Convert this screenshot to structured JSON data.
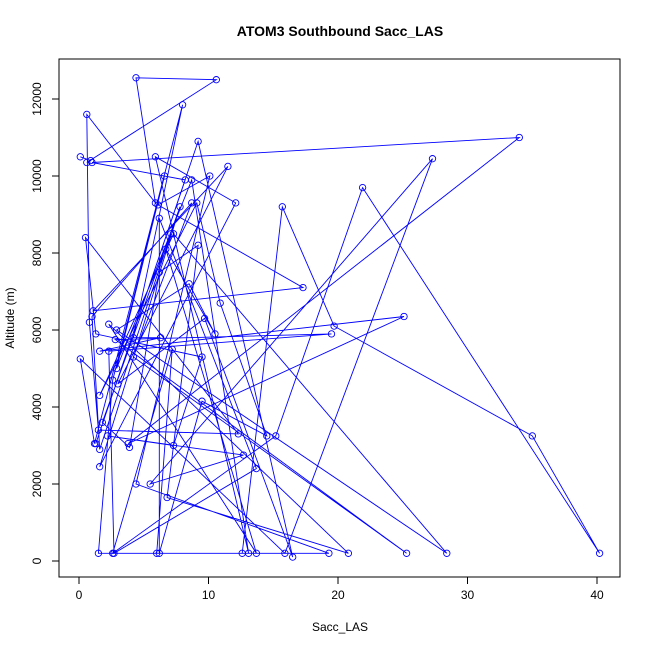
{
  "chart_data": {
    "type": "line",
    "title": "ATOM3 Southbound Sacc_LAS",
    "xlabel": "Sacc_LAS",
    "ylabel": "Altitude (m)",
    "xlim": [
      0,
      40
    ],
    "ylim": [
      0,
      12000
    ],
    "xticks": [
      "0",
      "10",
      "20",
      "30",
      "40"
    ],
    "yticks": [
      "0",
      "2000",
      "4000",
      "6000",
      "8000",
      "10000",
      "12000"
    ],
    "grid": false,
    "legend": "none",
    "series_color": "#0000ff",
    "series": [
      {
        "marker": "open-circle",
        "points": [
          [
            0.1,
            10500
          ],
          [
            0.9,
            10400
          ],
          [
            0.6,
            10350
          ],
          [
            10.6,
            12500
          ],
          [
            4.4,
            12550
          ],
          [
            5.9,
            9300
          ],
          [
            0.6,
            11600
          ],
          [
            0.8,
            6200
          ],
          [
            1.5,
            3400
          ],
          [
            12.3,
            3300
          ],
          [
            0.5,
            8400
          ],
          [
            1.3,
            5900
          ],
          [
            9.5,
            5300
          ],
          [
            7.3,
            3000
          ],
          [
            2.2,
            3250
          ],
          [
            12.7,
            2750
          ],
          [
            5.5,
            2000
          ],
          [
            27.3,
            10450
          ],
          [
            15.9,
            200
          ],
          [
            0.1,
            5250
          ],
          [
            1.2,
            3050
          ],
          [
            8.0,
            11850
          ],
          [
            4.2,
            5800
          ],
          [
            6.3,
            5800
          ],
          [
            1.6,
            5450
          ],
          [
            25.1,
            6350
          ],
          [
            3.8,
            3050
          ],
          [
            34.0,
            11000
          ],
          [
            1.0,
            10350
          ],
          [
            8.2,
            9900
          ],
          [
            1.3,
            3050
          ],
          [
            9.2,
            10900
          ],
          [
            16.5,
            100
          ],
          [
            9.7,
            6300
          ],
          [
            3.0,
            4600
          ],
          [
            11.5,
            10250
          ],
          [
            1.1,
            6500
          ],
          [
            17.3,
            7100
          ],
          [
            6.1,
            9250
          ],
          [
            10.1,
            10000
          ],
          [
            4.4,
            2000
          ],
          [
            19.3,
            200
          ],
          [
            6.0,
            200
          ],
          [
            7.2,
            5500
          ],
          [
            2.6,
            200
          ],
          [
            15.2,
            3250
          ],
          [
            21.9,
            9700
          ],
          [
            40.2,
            200
          ],
          [
            35.0,
            3250
          ],
          [
            19.7,
            6100
          ],
          [
            15.7,
            9200
          ],
          [
            12.6,
            200
          ],
          [
            1.5,
            200
          ],
          [
            2.6,
            4700
          ],
          [
            6.6,
            10000
          ],
          [
            2.9,
            5000
          ],
          [
            8.7,
            9900
          ],
          [
            13.1,
            200
          ],
          [
            5.9,
            10500
          ],
          [
            12.1,
            9300
          ],
          [
            1.6,
            2450
          ],
          [
            7.8,
            9200
          ],
          [
            1.8,
            3600
          ],
          [
            3.9,
            2950
          ],
          [
            6.2,
            7500
          ],
          [
            9.2,
            8200
          ],
          [
            6.8,
            1650
          ],
          [
            20.8,
            200
          ],
          [
            2.3,
            6150
          ],
          [
            13.7,
            200
          ],
          [
            6.7,
            8100
          ],
          [
            10.5,
            5900
          ],
          [
            8.5,
            7200
          ],
          [
            2.9,
            6000
          ],
          [
            28.4,
            200
          ],
          [
            7.3,
            8500
          ],
          [
            1.6,
            4300
          ],
          [
            9.1,
            9300
          ],
          [
            10.9,
            6700
          ],
          [
            14.5,
            3250
          ],
          [
            9.5,
            4150
          ],
          [
            6.2,
            200
          ],
          [
            6.2,
            8900
          ],
          [
            13.7,
            2400
          ],
          [
            2.7,
            200
          ],
          [
            2.3,
            5450
          ],
          [
            19.5,
            5900
          ],
          [
            2.8,
            5750
          ],
          [
            25.3,
            200
          ],
          [
            4.2,
            5300
          ],
          [
            8.7,
            9300
          ],
          [
            1.0,
            6350
          ],
          [
            1.6,
            2900
          ],
          [
            7.1,
            8500
          ]
        ]
      }
    ]
  }
}
